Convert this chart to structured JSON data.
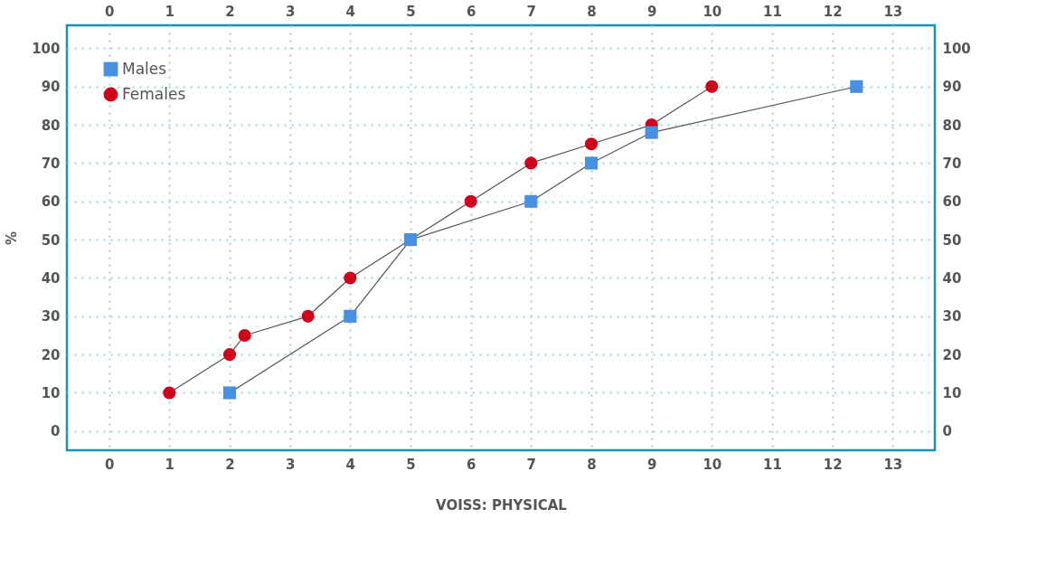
{
  "chart_data": {
    "type": "line",
    "xlabel": "VOISS: PHYSICAL",
    "ylabel": "%",
    "xlim": [
      -0.7,
      13.7
    ],
    "xticks": [
      0,
      1,
      2,
      3,
      4,
      5,
      6,
      7,
      8,
      9,
      10,
      11,
      12,
      13
    ],
    "x2lim": [
      -0.7,
      13.7
    ],
    "x2ticks": [
      0,
      1,
      2,
      3,
      4,
      5,
      6,
      7,
      8,
      9,
      10,
      11,
      12,
      13
    ],
    "ylim": [
      -5,
      106
    ],
    "yticks": [
      0,
      10,
      20,
      30,
      40,
      50,
      60,
      70,
      80,
      90,
      100
    ],
    "y2lim": [
      -5,
      106
    ],
    "y2ticks": [
      0,
      10,
      20,
      30,
      40,
      50,
      60,
      70,
      80,
      90,
      100
    ],
    "grid": true,
    "legend": "top left",
    "series": [
      {
        "name": "Males",
        "color": "#4a90e2",
        "marker": "square",
        "x": [
          2,
          4,
          5,
          7,
          8,
          9,
          12.4
        ],
        "values": [
          10,
          30,
          50,
          60,
          70,
          78,
          90
        ]
      },
      {
        "name": "Females",
        "color": "#d0021b",
        "marker": "circle",
        "x": [
          1,
          2,
          2.25,
          3.3,
          4,
          5,
          6,
          7,
          8,
          9,
          10
        ],
        "values": [
          10,
          20,
          25,
          30,
          40,
          50,
          60,
          70,
          75,
          80,
          90
        ]
      }
    ]
  }
}
